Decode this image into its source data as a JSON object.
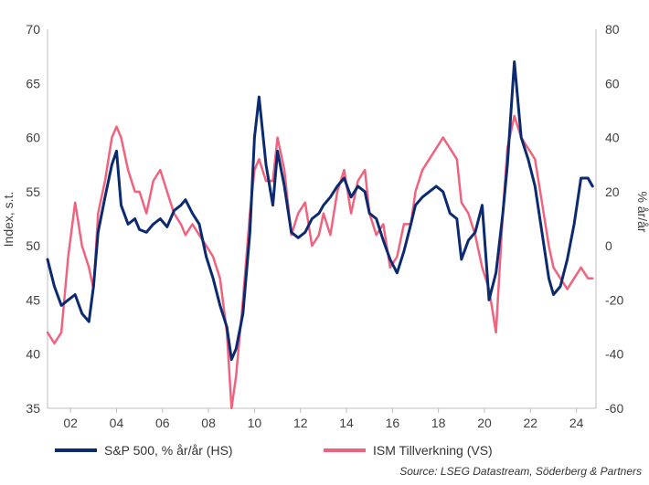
{
  "chart_data": {
    "type": "line",
    "title": "",
    "left_axis": {
      "label": "Index, s.t.",
      "min": 35,
      "max": 70,
      "ticks": [
        35,
        40,
        45,
        50,
        55,
        60,
        65,
        70
      ]
    },
    "right_axis": {
      "label": "% år/år",
      "min": -60,
      "max": 80,
      "ticks": [
        -60,
        -40,
        -20,
        0,
        20,
        40,
        60,
        80
      ]
    },
    "x_axis": {
      "min": 2001.0,
      "max": 2024.85,
      "ticks": [
        2002,
        2004,
        2006,
        2008,
        2010,
        2012,
        2014,
        2016,
        2018,
        2020,
        2022,
        2024
      ],
      "tick_labels": [
        "02",
        "04",
        "06",
        "08",
        "10",
        "12",
        "14",
        "16",
        "18",
        "20",
        "22",
        "24"
      ]
    },
    "grid": false,
    "legend_position": "bottom",
    "source": "Source: LSEG Datastream, Söderberg & Partners",
    "colors": {
      "sp500": "#0b2a6f",
      "ism": "#f0637f",
      "axis": "#bfbfbf"
    },
    "series": [
      {
        "name": "S&P 500, % år/år (HS)",
        "axis": "right",
        "color": "#0b2a6f",
        "x": [
          2001.0,
          2001.3,
          2001.6,
          2001.9,
          2002.2,
          2002.5,
          2002.8,
          2003.0,
          2003.2,
          2003.5,
          2003.8,
          2004.0,
          2004.2,
          2004.5,
          2004.8,
          2005.0,
          2005.3,
          2005.6,
          2005.9,
          2006.2,
          2006.5,
          2006.8,
          2007.0,
          2007.3,
          2007.6,
          2007.9,
          2008.2,
          2008.5,
          2008.8,
          2009.0,
          2009.2,
          2009.5,
          2009.8,
          2010.0,
          2010.2,
          2010.5,
          2010.8,
          2011.0,
          2011.3,
          2011.6,
          2011.9,
          2012.2,
          2012.5,
          2012.8,
          2013.0,
          2013.3,
          2013.6,
          2013.9,
          2014.2,
          2014.5,
          2014.8,
          2015.0,
          2015.3,
          2015.6,
          2015.9,
          2016.2,
          2016.5,
          2016.8,
          2017.0,
          2017.3,
          2017.6,
          2017.9,
          2018.2,
          2018.5,
          2018.8,
          2019.0,
          2019.3,
          2019.6,
          2019.9,
          2020.2,
          2020.5,
          2020.8,
          2021.0,
          2021.3,
          2021.6,
          2021.9,
          2022.2,
          2022.5,
          2022.8,
          2023.0,
          2023.3,
          2023.6,
          2023.9,
          2024.2,
          2024.5,
          2024.7
        ],
        "values": [
          -5,
          -15,
          -22,
          -20,
          -18,
          -25,
          -28,
          -15,
          5,
          18,
          30,
          35,
          15,
          8,
          10,
          6,
          5,
          8,
          10,
          7,
          13,
          15,
          17,
          12,
          8,
          -4,
          -12,
          -22,
          -30,
          -42,
          -38,
          -25,
          5,
          40,
          55,
          30,
          15,
          35,
          22,
          5,
          3,
          5,
          10,
          12,
          15,
          18,
          22,
          25,
          18,
          22,
          20,
          12,
          10,
          2,
          -5,
          -10,
          -2,
          8,
          15,
          18,
          20,
          22,
          20,
          12,
          10,
          -5,
          2,
          5,
          15,
          -20,
          -10,
          12,
          30,
          68,
          40,
          32,
          22,
          5,
          -12,
          -18,
          -15,
          -5,
          8,
          25,
          25,
          22
        ]
      },
      {
        "name": "ISM Tillverkning (VS)",
        "axis": "left",
        "color": "#f0637f",
        "x": [
          2001.0,
          2001.3,
          2001.6,
          2001.9,
          2002.2,
          2002.5,
          2002.8,
          2003.0,
          2003.2,
          2003.5,
          2003.8,
          2004.0,
          2004.2,
          2004.5,
          2004.8,
          2005.0,
          2005.3,
          2005.6,
          2005.9,
          2006.2,
          2006.5,
          2006.8,
          2007.0,
          2007.3,
          2007.6,
          2007.9,
          2008.2,
          2008.5,
          2008.8,
          2009.0,
          2009.2,
          2009.5,
          2009.8,
          2010.0,
          2010.2,
          2010.5,
          2010.8,
          2011.0,
          2011.3,
          2011.6,
          2011.9,
          2012.2,
          2012.5,
          2012.8,
          2013.0,
          2013.3,
          2013.6,
          2013.9,
          2014.2,
          2014.5,
          2014.8,
          2015.0,
          2015.3,
          2015.6,
          2015.9,
          2016.2,
          2016.5,
          2016.8,
          2017.0,
          2017.3,
          2017.6,
          2017.9,
          2018.2,
          2018.5,
          2018.8,
          2019.0,
          2019.3,
          2019.6,
          2019.9,
          2020.2,
          2020.5,
          2020.8,
          2021.0,
          2021.3,
          2021.6,
          2021.9,
          2022.2,
          2022.5,
          2022.8,
          2023.0,
          2023.3,
          2023.6,
          2023.9,
          2024.2,
          2024.5,
          2024.7
        ],
        "values": [
          42,
          41,
          42,
          49,
          54,
          50,
          48,
          46,
          53,
          56,
          60,
          61,
          60,
          57,
          55,
          55,
          53,
          56,
          57,
          55,
          53,
          52,
          51,
          52,
          51,
          50,
          49,
          47,
          42,
          35,
          38,
          45,
          53,
          57,
          58,
          56,
          56,
          60,
          57,
          51,
          53,
          54,
          50,
          51,
          53,
          51,
          55,
          57,
          53,
          56,
          57,
          53,
          51,
          52,
          48,
          49,
          52,
          52,
          55,
          57,
          58,
          59,
          60,
          59,
          58,
          54,
          53,
          51,
          48,
          46,
          42,
          53,
          59,
          62,
          60,
          59,
          58,
          54,
          50,
          48,
          47,
          46,
          47,
          48,
          47,
          47
        ]
      }
    ]
  }
}
